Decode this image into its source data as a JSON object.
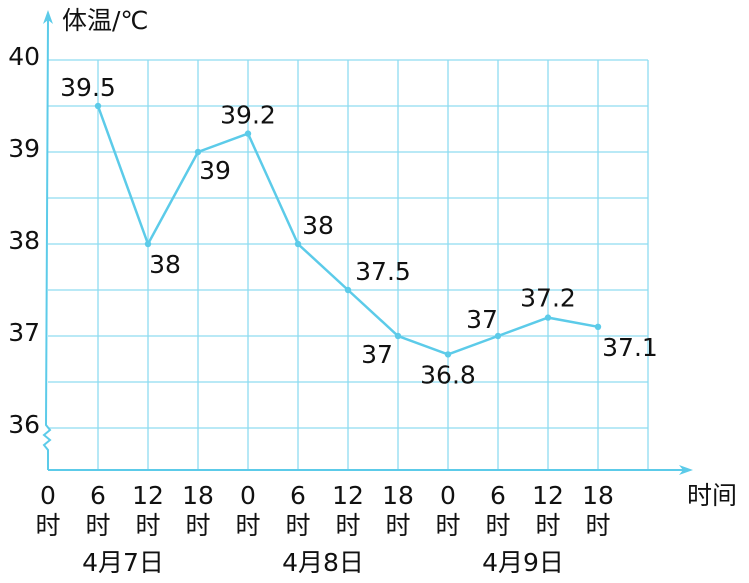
{
  "chart_data": {
    "type": "line",
    "y_label": "体温/℃",
    "x_label": "时间",
    "categories": [
      "0",
      "6",
      "12",
      "18",
      "0",
      "6",
      "12",
      "18",
      "0",
      "6",
      "12",
      "18"
    ],
    "category_unit": "时",
    "groups": [
      "4月7日",
      "4月8日",
      "4月9日"
    ],
    "values": [
      null,
      39.5,
      38,
      39,
      39.2,
      38,
      37.5,
      37,
      36.8,
      37,
      37.2,
      37.1
    ],
    "color": "#5ccbe9",
    "ylim": [
      36,
      40
    ],
    "yticks": [
      36,
      37,
      38,
      39,
      40
    ],
    "grid": true,
    "grid_step": 0.5,
    "grid_color": "#8fdcf0"
  }
}
